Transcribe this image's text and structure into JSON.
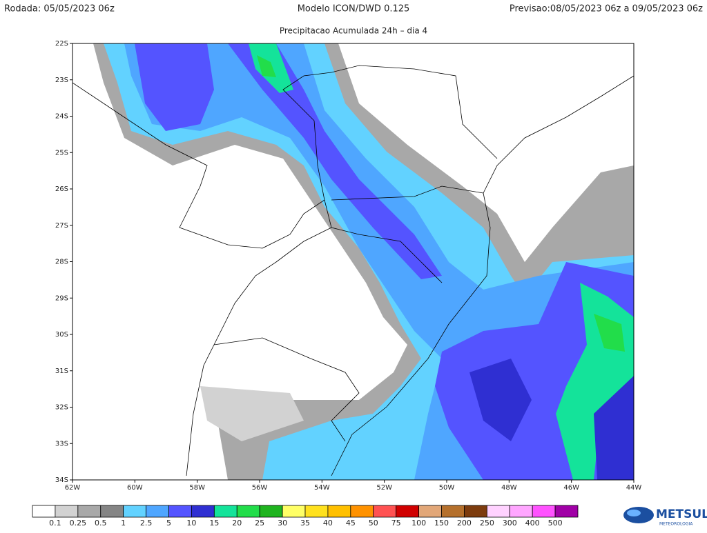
{
  "header": {
    "left": "Rodada: 05/05/2023 06z",
    "center": "Modelo ICON/DWD 0.125",
    "right": "Previsao:08/05/2023 06z a 09/05/2023 06z",
    "subtitle": "Precipitacao Acumulada 24h – dia 4"
  },
  "map": {
    "lat_labels": [
      "22S",
      "23S",
      "24S",
      "25S",
      "26S",
      "27S",
      "28S",
      "29S",
      "30S",
      "31S",
      "32S",
      "33S",
      "34S"
    ],
    "lon_labels": [
      "62W",
      "60W",
      "58W",
      "56W",
      "54W",
      "52W",
      "50W",
      "48W",
      "46W",
      "44W"
    ]
  },
  "colorbar": {
    "labels": [
      "0.1",
      "0.25",
      "0.5",
      "1",
      "2.5",
      "5",
      "10",
      "15",
      "20",
      "25",
      "30",
      "35",
      "40",
      "45",
      "50",
      "75",
      "100",
      "150",
      "200",
      "250",
      "300",
      "400",
      "500"
    ],
    "colors": [
      "#ffffff",
      "#d2d2d2",
      "#a8a8a8",
      "#858585",
      "#62d2ff",
      "#4fa6ff",
      "#5454ff",
      "#2f2fd2",
      "#14e39a",
      "#22dd4a",
      "#1fb41f",
      "#ffff66",
      "#ffe11e",
      "#ffc000",
      "#ff9200",
      "#ff5252",
      "#d00000",
      "#e2a778",
      "#b5702c",
      "#7d3c0e",
      "#ffd2ff",
      "#ffa6ff",
      "#ff52ff",
      "#a000a6"
    ]
  },
  "logo": {
    "name": "METSUL",
    "tagline": "METEOROLOGIA"
  }
}
